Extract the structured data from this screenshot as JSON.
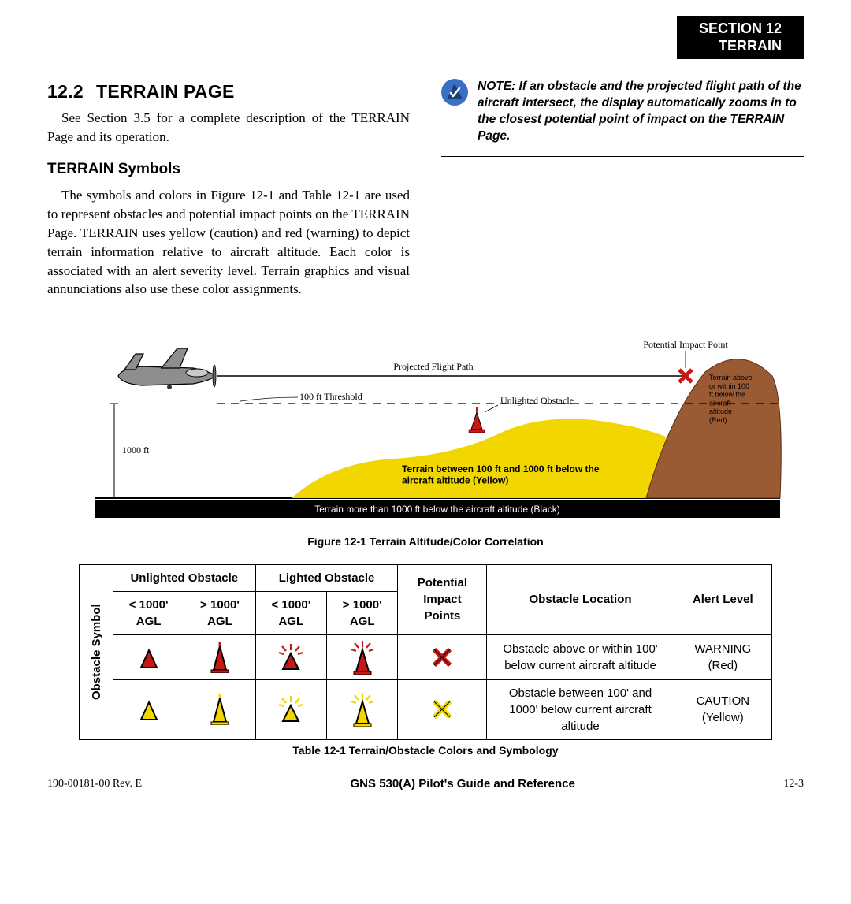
{
  "header": {
    "section_line1": "SECTION 12",
    "section_line2": "TERRAIN"
  },
  "heading": {
    "number": "12.2",
    "title": "TERRAIN PAGE"
  },
  "intro_text": "See Section 3.5 for a complete description of the TERRAIN Page and its operation.",
  "subhead": "TERRAIN Symbols",
  "symbols_para": "The symbols and colors in Figure 12-1 and Table 12-1 are used to represent obstacles and potential impact points on the TERRAIN Page.  TERRAIN uses yellow (caution)  and red (warning) to depict terrain information relative to aircraft altitude. Each color is associated with an alert severity level. Terrain graphics and visual annunciations also use these color assignments.",
  "note": {
    "text": "NOTE:  If an obstacle and the projected flight path of the aircraft intersect, the display automatically zooms in to the closest potential point of impact on the TERRAIN Page."
  },
  "figure": {
    "caption": "Figure 12-1  Terrain Altitude/Color Correlation",
    "labels": {
      "projected_path": "Projected Flight Path",
      "threshold": "100 ft Threshold",
      "unlighted_obstacle": "Unlighted Obstacle",
      "potential_impact": "Potential Impact Point",
      "terrain_red": "Terrain above or within 100 ft below the aircraft altitude (Red)",
      "alt_1000": "1000 ft",
      "terrain_yellow": "Terrain between 100 ft and 1000 ft below the aircraft altitude (Yellow)",
      "terrain_black": "Terrain more than 1000 ft below the aircraft altitude (Black)"
    },
    "colors": {
      "aircraft_fill": "#8e8e8e",
      "aircraft_stroke": "#000000",
      "yellow_terrain": "#f2d600",
      "red_terrain": "#9a5a33",
      "black_band": "#000000",
      "obstacle_red": "#c41917",
      "impact_x": "#c41917",
      "path_line": "#000000"
    }
  },
  "table": {
    "caption": "Table 12-1  Terrain/Obstacle Colors and Symbology",
    "side_label": "Obstacle Symbol",
    "headers": {
      "unlighted": "Unlighted Obstacle",
      "lighted": "Lighted Obstacle",
      "lt1000": "< 1000' AGL",
      "gt1000": "> 1000' AGL",
      "impact": "Potential Impact Points",
      "location": "Obstacle Location",
      "alert": "Alert Level"
    },
    "rows": [
      {
        "color": "#c41917",
        "location": "Obstacle above or within 100' below current aircraft altitude",
        "alert": "WARNING (Red)"
      },
      {
        "color": "#f2d600",
        "location": "Obstacle between 100' and 1000' below current aircraft altitude",
        "alert": "CAUTION (Yellow)"
      }
    ]
  },
  "footer": {
    "left": "190-00181-00  Rev. E",
    "center": "GNS 530(A) Pilot's Guide and Reference",
    "right": "12-3"
  }
}
